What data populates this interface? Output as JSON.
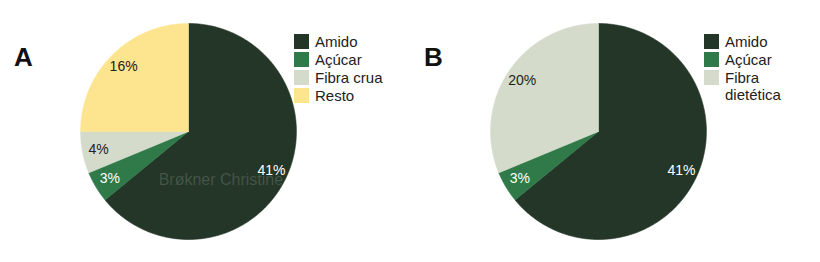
{
  "chart_data": [
    {
      "type": "pie",
      "title": "A",
      "categories": [
        "Amido",
        "Açúcar",
        "Fibra crua",
        "Resto"
      ],
      "values": [
        41,
        3,
        4,
        16
      ],
      "value_labels": [
        "41%",
        "3%",
        "4%",
        "16%"
      ],
      "colors": [
        "#233628",
        "#2f7a48",
        "#d4dbcb",
        "#fde590"
      ],
      "data_labels": true,
      "legend": "right",
      "annotations": [
        "Brøkner Christine"
      ]
    },
    {
      "type": "pie",
      "title": "B",
      "categories": [
        "Amido",
        "Açúcar",
        "Fibra dietética"
      ],
      "values": [
        41,
        3,
        20
      ],
      "value_labels": [
        "41%",
        "3%",
        "20%"
      ],
      "colors": [
        "#233628",
        "#2f7a48",
        "#d4dbcb"
      ],
      "data_labels": true,
      "legend": "right"
    }
  ]
}
